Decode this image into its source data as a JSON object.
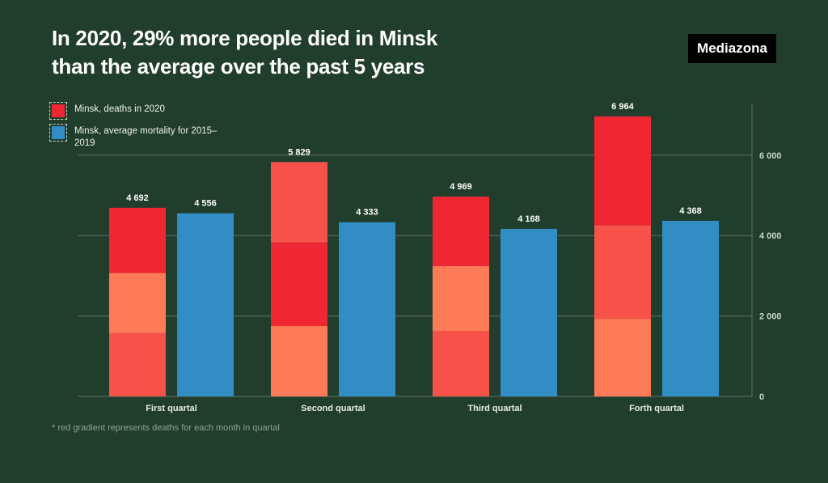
{
  "header": {
    "title_line1": "In 2020, 29% more people died in Minsk",
    "title_line2": "than the average over the past 5 years",
    "brand": "Mediazona"
  },
  "legend": [
    {
      "label": "Minsk, deaths in 2020",
      "color": "#ee2733"
    },
    {
      "label": "Minsk, average mortality for 2015–2019",
      "color": "#318dc4"
    }
  ],
  "footnote": "* red gradient represents deaths for each month in quartal",
  "colors": {
    "background": "#213d2c",
    "month_shades": [
      "#f6524a",
      "#ff7a56",
      "#ee2733"
    ],
    "average": "#318dc4",
    "grid": "#5d7566"
  },
  "chart_data": {
    "type": "bar",
    "title": "In 2020, 29% more people died in Minsk than the average over the past 5 years",
    "xlabel": "",
    "ylabel": "",
    "categories": [
      "First quartal",
      "Second quartal",
      "Third quartal",
      "Forth quartal"
    ],
    "ylim": [
      0,
      7200
    ],
    "yticks": [
      0,
      2000,
      4000,
      6000
    ],
    "ytick_labels": [
      "0",
      "2 000",
      "4 000",
      "6 000"
    ],
    "y_axis_position": "right",
    "grid": true,
    "legend_position": "top-left",
    "series": [
      {
        "name": "Minsk, deaths in 2020",
        "stacked": true,
        "values": [
          4692,
          5829,
          4969,
          6964
        ],
        "value_labels": [
          "4 692",
          "5 829",
          "4 969",
          "6 964"
        ],
        "monthly_segments": [
          {
            "values": [
              1580,
              1490,
              1622
            ],
            "colors": [
              "#f6524a",
              "#ff7a56",
              "#ee2733"
            ]
          },
          {
            "values": [
              1750,
              2080,
              1999
            ],
            "colors": [
              "#ff7a56",
              "#ee2733",
              "#f6524a"
            ]
          },
          {
            "values": [
              1630,
              1610,
              1729
            ],
            "colors": [
              "#f6524a",
              "#ff7a56",
              "#ee2733"
            ]
          },
          {
            "values": [
              1930,
              2330,
              2704
            ],
            "colors": [
              "#ff7a56",
              "#f6524a",
              "#ee2733"
            ]
          }
        ]
      },
      {
        "name": "Minsk, average mortality for 2015–2019",
        "values": [
          4556,
          4333,
          4168,
          4368
        ],
        "value_labels": [
          "4 556",
          "4 333",
          "4 168",
          "4 368"
        ],
        "color": "#318dc4"
      }
    ]
  }
}
